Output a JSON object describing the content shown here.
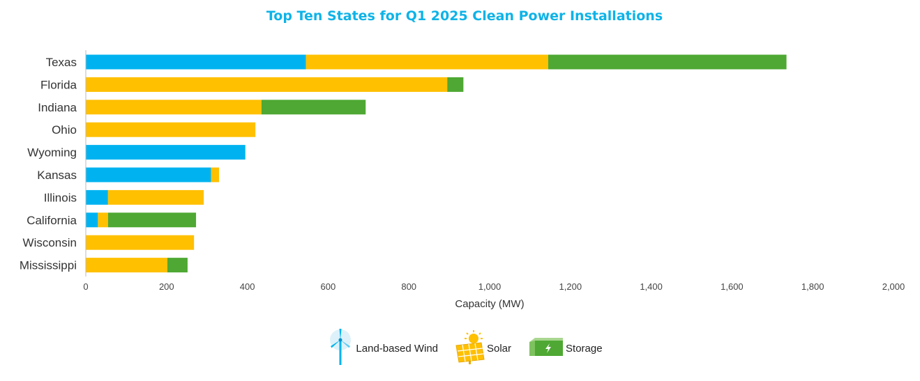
{
  "colors": {
    "title": "#0EB3E7",
    "wind": "#00B3F0",
    "solar": "#FFC000",
    "storage": "#4EA833",
    "axis": "#BBBBBB"
  },
  "chart_data": {
    "type": "bar",
    "orientation": "horizontal",
    "stacked": true,
    "title": "Top Ten States for Q1 2025 Clean Power Installations",
    "xlabel": "Capacity (MW)",
    "ylabel": "",
    "xlim": [
      0,
      2000
    ],
    "xticks": [
      0,
      200,
      400,
      600,
      800,
      1000,
      1200,
      1400,
      1600,
      1800,
      2000
    ],
    "xtick_labels": [
      "0",
      "200",
      "400",
      "600",
      "800",
      "1,000",
      "1,200",
      "1,400",
      "1,600",
      "1,800",
      "2,000"
    ],
    "grid": false,
    "legend_position": "bottom-center",
    "categories": [
      "Texas",
      "Florida",
      "Indiana",
      "Ohio",
      "Wyoming",
      "Kansas",
      "Illinois",
      "California",
      "Wisconsin",
      "Mississippi"
    ],
    "series": [
      {
        "name": "Land-based Wind",
        "key": "wind",
        "icon": "wind-turbine-icon",
        "values": [
          545,
          0,
          0,
          0,
          395,
          310,
          55,
          30,
          0,
          0
        ]
      },
      {
        "name": "Solar",
        "key": "solar",
        "icon": "solar-panel-icon",
        "values": [
          600,
          895,
          435,
          420,
          0,
          20,
          237,
          25,
          268,
          202
        ]
      },
      {
        "name": "Storage",
        "key": "storage",
        "icon": "battery-icon",
        "values": [
          590,
          40,
          258,
          0,
          0,
          0,
          0,
          218,
          0,
          50
        ]
      }
    ]
  }
}
